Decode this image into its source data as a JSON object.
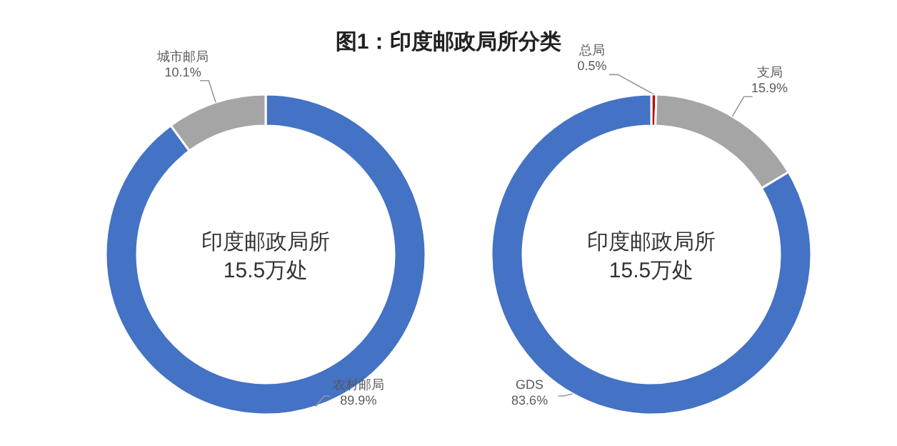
{
  "chart_data": [
    {
      "type": "donut",
      "title": "图1：印度邮政局所分类",
      "categories": [
        "农村邮局",
        "城市邮局"
      ],
      "values": [
        89.9,
        10.1
      ],
      "colors": [
        "#4472c4",
        "#a5a5a5"
      ],
      "value_labels": [
        "89.9%",
        "10.1%"
      ],
      "annotations": [
        "印度邮政局所",
        "15.5万处"
      ]
    },
    {
      "type": "donut",
      "categories": [
        "总局",
        "支局",
        "GDS"
      ],
      "values": [
        0.5,
        15.9,
        83.6
      ],
      "colors": [
        "#c00000",
        "#a5a5a5",
        "#4472c4"
      ],
      "value_labels": [
        "0.5%",
        "15.9%",
        "83.6%"
      ],
      "annotations": [
        "印度邮政局所",
        "15.5万处"
      ]
    }
  ]
}
